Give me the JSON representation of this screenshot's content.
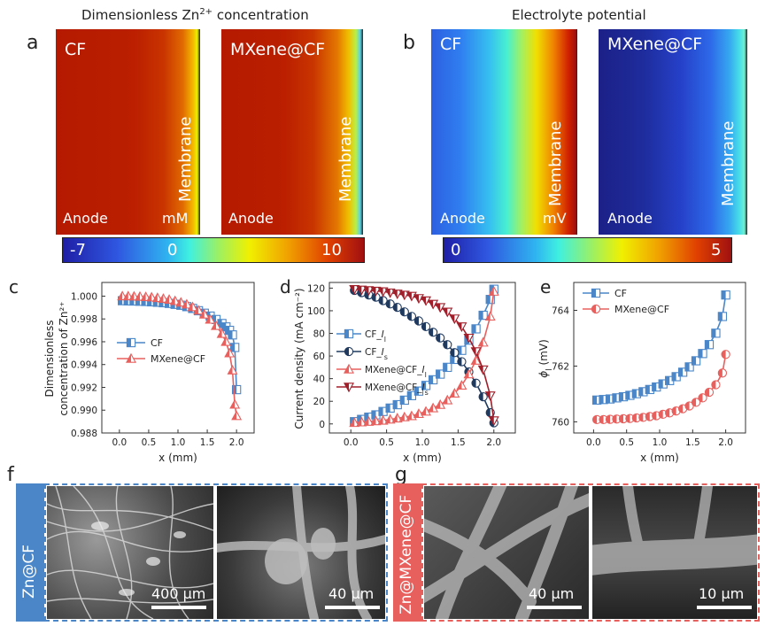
{
  "panel_a": {
    "letter": "a",
    "title_main": "Dimensionless Zn",
    "title_sup": "2+",
    "title_tail": " concentration",
    "left_map": {
      "name": "CF",
      "anode": "Anode",
      "membrane": "Membrane",
      "unit": "mM"
    },
    "right_map": {
      "name": "MXene@CF",
      "anode": "Anode",
      "membrane": "Membrane"
    },
    "colorbar": {
      "min": "-7",
      "mid": "0",
      "max": "10"
    }
  },
  "panel_b": {
    "letter": "b",
    "title": "Electrolyte potential",
    "left_map": {
      "name": "CF",
      "anode": "Anode",
      "membrane": "Membrane",
      "unit": "mV"
    },
    "right_map": {
      "name": "MXene@CF",
      "anode": "Anode",
      "membrane": "Membrane"
    },
    "colorbar": {
      "min": "0",
      "max": "5"
    }
  },
  "colors": {
    "cf_blue": "#4a86c8",
    "mxene_red": "#e8605e",
    "dark_navy": "#203a5f",
    "dark_red": "#a01f2a"
  },
  "panel_f": {
    "letter": "f",
    "side_label": "Zn@CF",
    "scale_left": "400 μm",
    "scale_right": "40 μm"
  },
  "panel_g": {
    "letter": "g",
    "side_label": "Zn@MXene@CF",
    "scale_left": "40 μm",
    "scale_right": "10 μm"
  },
  "chart_data": [
    {
      "id": "c",
      "letter": "c",
      "type": "line",
      "xlabel": "x (mm)",
      "ylabel_line1": "Dimensionless",
      "ylabel_line2": "concentration of Zn²⁺",
      "xlim": [
        -0.3,
        2.3
      ],
      "ylim": [
        0.988,
        1.0012
      ],
      "xticks": [
        0.0,
        0.5,
        1.0,
        1.5,
        2.0
      ],
      "xtick_labels": [
        "0.0",
        "0.5",
        "1.0",
        "1.5",
        "2.0"
      ],
      "yticks": [
        0.988,
        0.99,
        0.992,
        0.994,
        0.996,
        0.998,
        1.0
      ],
      "ytick_labels": [
        "0.988",
        "0.990",
        "0.992",
        "0.994",
        "0.996",
        "0.998",
        "1.000"
      ],
      "legend_position": "center-left",
      "x": [
        0.05,
        0.15,
        0.25,
        0.35,
        0.45,
        0.55,
        0.65,
        0.75,
        0.85,
        0.95,
        1.05,
        1.15,
        1.25,
        1.35,
        1.45,
        1.55,
        1.65,
        1.75,
        1.82,
        1.88,
        1.93,
        1.97,
        2.0
      ],
      "series": [
        {
          "name": "CF",
          "marker": "square",
          "color": "#4a86c8",
          "values": [
            0.9996,
            0.99958,
            0.99957,
            0.99955,
            0.99953,
            0.9995,
            0.99946,
            0.99942,
            0.99936,
            0.99928,
            0.9992,
            0.99908,
            0.99892,
            0.99872,
            0.9985,
            0.99825,
            0.99795,
            0.9976,
            0.9973,
            0.997,
            0.9966,
            0.9955,
            0.9918
          ]
        },
        {
          "name": "MXene@CF",
          "marker": "triangle",
          "color": "#e8605e",
          "values": [
            1.0,
            1.0,
            0.99998,
            0.99996,
            0.99993,
            0.9999,
            0.99985,
            0.99978,
            0.9997,
            0.99958,
            0.99945,
            0.99928,
            0.99905,
            0.99875,
            0.9984,
            0.99795,
            0.9974,
            0.9967,
            0.996,
            0.995,
            0.9935,
            0.9905,
            0.9895
          ]
        }
      ]
    },
    {
      "id": "d",
      "letter": "d",
      "type": "line",
      "xlabel": "x (mm)",
      "ylabel": "Current density (mA cm⁻²)",
      "xlim": [
        -0.3,
        2.3
      ],
      "ylim": [
        -8,
        125
      ],
      "xticks": [
        0.0,
        0.5,
        1.0,
        1.5,
        2.0
      ],
      "xtick_labels": [
        "0.0",
        "0.5",
        "1.0",
        "1.5",
        "2.0"
      ],
      "yticks": [
        0,
        20,
        40,
        60,
        80,
        100,
        120
      ],
      "ytick_labels": [
        "0",
        "20",
        "40",
        "60",
        "80",
        "100",
        "120"
      ],
      "legend_position": "center-left",
      "x": [
        0.05,
        0.15,
        0.25,
        0.35,
        0.45,
        0.55,
        0.65,
        0.75,
        0.85,
        0.95,
        1.05,
        1.15,
        1.25,
        1.35,
        1.45,
        1.55,
        1.65,
        1.75,
        1.85,
        1.95,
        2.0
      ],
      "series": [
        {
          "name": "CF_I_l",
          "label_main": "CF_",
          "label_italic": "I",
          "label_sub": "l",
          "marker": "square",
          "color": "#4a86c8",
          "values": [
            2,
            4,
            6,
            8,
            11,
            14,
            17,
            21,
            25,
            29,
            34,
            39,
            44,
            50,
            57,
            65,
            74,
            84,
            96,
            110,
            119
          ]
        },
        {
          "name": "CF_I_s",
          "label_main": "CF_",
          "label_italic": "I",
          "label_sub": "s",
          "marker": "circle-half",
          "color": "#203a5f",
          "values": [
            118,
            116,
            114,
            112,
            109,
            106,
            103,
            99,
            95,
            91,
            86,
            81,
            76,
            70,
            63,
            55,
            46,
            36,
            24,
            10,
            1
          ]
        },
        {
          "name": "MXene@CF_I_l",
          "label_main": "MXene@CF_",
          "label_italic": "I",
          "label_sub": "l",
          "marker": "triangle",
          "color": "#e8605e",
          "values": [
            1,
            1.5,
            2,
            2.5,
            3,
            4,
            5,
            6,
            7,
            9,
            11,
            14,
            17,
            21,
            27,
            34,
            44,
            56,
            72,
            95,
            117
          ]
        },
        {
          "name": "MXene@CF_I_s",
          "label_main": "MXene@CF_",
          "label_italic": "I",
          "label_sub": "s",
          "marker": "triangle-down",
          "color": "#a01f2a",
          "values": [
            119,
            118.5,
            118,
            117.5,
            117,
            116,
            115,
            114,
            113,
            111,
            109,
            106,
            103,
            99,
            93,
            86,
            76,
            64,
            48,
            25,
            3
          ]
        }
      ]
    },
    {
      "id": "e",
      "letter": "e",
      "type": "line",
      "xlabel": "x (mm)",
      "ylabel_italic": "ϕ",
      "ylabel_sub": "l",
      "ylabel_tail": " (mV)",
      "xlim": [
        -0.3,
        2.3
      ],
      "ylim": [
        759.6,
        765.0
      ],
      "xticks": [
        0.0,
        0.5,
        1.0,
        1.5,
        2.0
      ],
      "xtick_labels": [
        "0.0",
        "0.5",
        "1.0",
        "1.5",
        "2.0"
      ],
      "yticks": [
        760,
        762,
        764
      ],
      "ytick_labels": [
        "760",
        "762",
        "764"
      ],
      "legend_position": "top-left",
      "x": [
        0.05,
        0.15,
        0.25,
        0.35,
        0.45,
        0.55,
        0.65,
        0.75,
        0.85,
        0.95,
        1.05,
        1.15,
        1.25,
        1.35,
        1.45,
        1.55,
        1.65,
        1.75,
        1.85,
        1.95,
        2.0
      ],
      "series": [
        {
          "name": "CF",
          "marker": "square",
          "color": "#4a86c8",
          "values": [
            760.78,
            760.8,
            760.82,
            760.86,
            760.9,
            760.95,
            761.01,
            761.08,
            761.16,
            761.25,
            761.36,
            761.48,
            761.62,
            761.78,
            761.97,
            762.19,
            762.45,
            762.77,
            763.18,
            763.78,
            764.55
          ]
        },
        {
          "name": "MXene@CF",
          "marker": "circle-half",
          "color": "#e8605e",
          "values": [
            760.08,
            760.08,
            760.09,
            760.1,
            760.11,
            760.12,
            760.14,
            760.16,
            760.19,
            760.22,
            760.27,
            760.32,
            760.39,
            760.47,
            760.57,
            760.7,
            760.86,
            761.06,
            761.33,
            761.75,
            762.42
          ]
        }
      ]
    }
  ]
}
